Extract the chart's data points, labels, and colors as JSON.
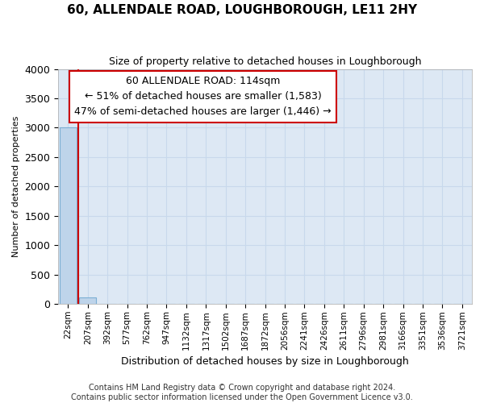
{
  "title": "60, ALLENDALE ROAD, LOUGHBOROUGH, LE11 2HY",
  "subtitle": "Size of property relative to detached houses in Loughborough",
  "xlabel": "Distribution of detached houses by size in Loughborough",
  "ylabel": "Number of detached properties",
  "footer_line1": "Contains HM Land Registry data © Crown copyright and database right 2024.",
  "footer_line2": "Contains public sector information licensed under the Open Government Licence v3.0.",
  "bar_labels": [
    "22sqm",
    "207sqm",
    "392sqm",
    "577sqm",
    "762sqm",
    "947sqm",
    "1132sqm",
    "1317sqm",
    "1502sqm",
    "1687sqm",
    "1872sqm",
    "2056sqm",
    "2241sqm",
    "2426sqm",
    "2611sqm",
    "2796sqm",
    "2981sqm",
    "3166sqm",
    "3351sqm",
    "3536sqm",
    "3721sqm"
  ],
  "bar_values": [
    3000,
    110,
    0,
    0,
    0,
    0,
    0,
    0,
    0,
    0,
    0,
    0,
    0,
    0,
    0,
    0,
    0,
    0,
    0,
    0,
    0
  ],
  "bar_color": "#bed4ea",
  "bar_edge_color": "#7bafd4",
  "ylim": [
    0,
    4000
  ],
  "yticks": [
    0,
    500,
    1000,
    1500,
    2000,
    2500,
    3000,
    3500,
    4000
  ],
  "red_line_x": 0.5,
  "annotation_text_line1": "60 ALLENDALE ROAD: 114sqm",
  "annotation_text_line2": "← 51% of detached houses are smaller (1,583)",
  "annotation_text_line3": "47% of semi-detached houses are larger (1,446) →",
  "annotation_box_color": "#ffffff",
  "annotation_box_edge": "#cc0000",
  "grid_color": "#c8d8ec",
  "background_color": "#dde8f4",
  "title_fontsize": 11,
  "subtitle_fontsize": 9,
  "annotation_fontsize": 9,
  "ylabel_fontsize": 8,
  "xlabel_fontsize": 9,
  "ytick_fontsize": 9,
  "xtick_fontsize": 7.5,
  "footer_fontsize": 7
}
